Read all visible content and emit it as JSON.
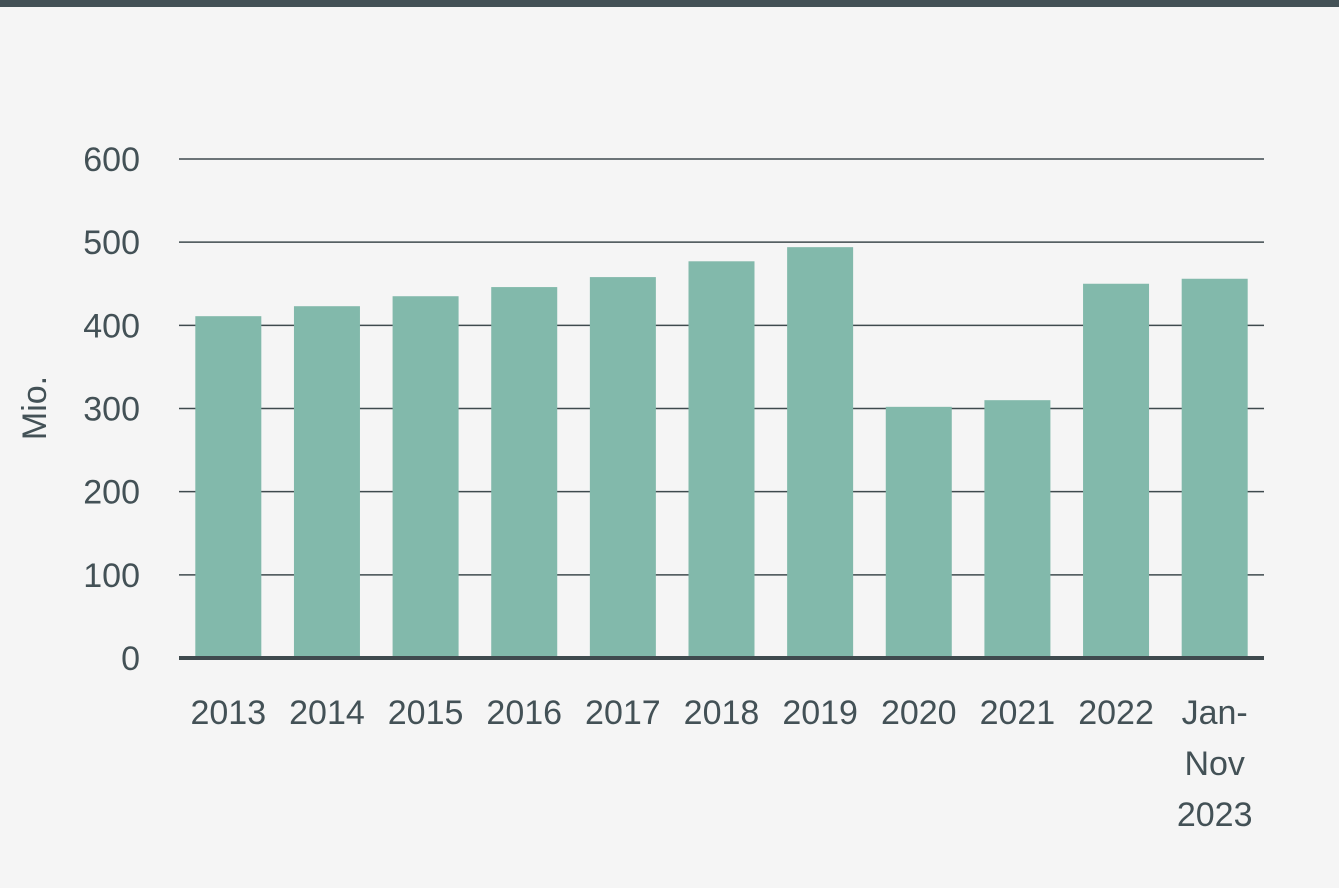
{
  "chart_data": {
    "type": "bar",
    "y_label": "Mio.",
    "categories": [
      "2013",
      "2014",
      "2015",
      "2016",
      "2017",
      "2018",
      "2019",
      "2020",
      "2021",
      "2022",
      "Jan-Nov 2023"
    ],
    "values": [
      411,
      423,
      435,
      446,
      458,
      477,
      494,
      302,
      310,
      450,
      456
    ],
    "color": "#82b9ab",
    "ylim": [
      0,
      600
    ],
    "yticks": [
      0,
      100,
      200,
      300,
      400,
      500,
      600
    ],
    "grid": true
  }
}
